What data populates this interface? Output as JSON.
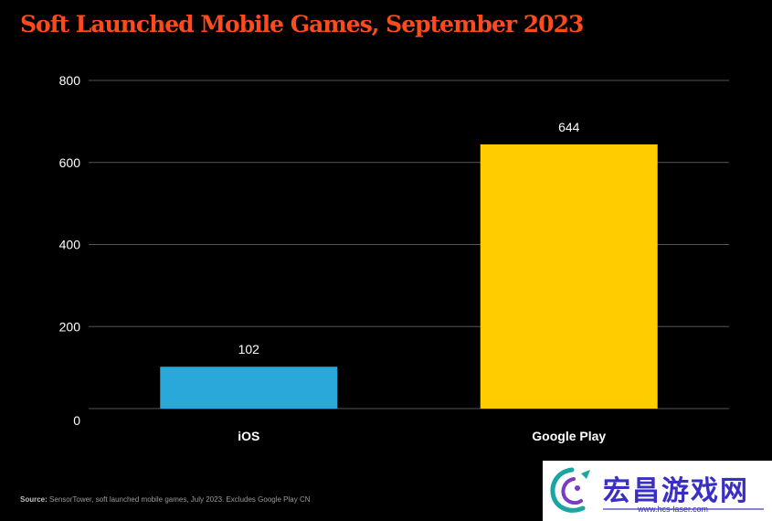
{
  "title": "Soft Launched Mobile Games, September 2023",
  "source": {
    "label": "Source:",
    "text": "SensorTower, soft launched mobile games, July 2023. Excludes Google Play CN"
  },
  "watermark": {
    "text": "宏昌游戏网",
    "url": "www.hcs-laser.com"
  },
  "colors": {
    "background": "#000000",
    "title": "#ff4a1c",
    "ios": "#29a8d9",
    "google_play": "#ffcc00",
    "grid": "#555555"
  },
  "chart_data": {
    "type": "bar",
    "title": "Soft Launched Mobile Games, September 2023",
    "categories": [
      "iOS",
      "Google Play"
    ],
    "values": [
      102,
      644
    ],
    "data_labels": [
      "102",
      "644"
    ],
    "bar_colors": [
      "#29a8d9",
      "#ffcc00"
    ],
    "ylim": [
      0,
      800
    ],
    "yticks": [
      0,
      200,
      400,
      600,
      800
    ],
    "ytick_labels": [
      "0",
      "200",
      "400",
      "600",
      "800"
    ],
    "grid": true,
    "legend": "none"
  }
}
